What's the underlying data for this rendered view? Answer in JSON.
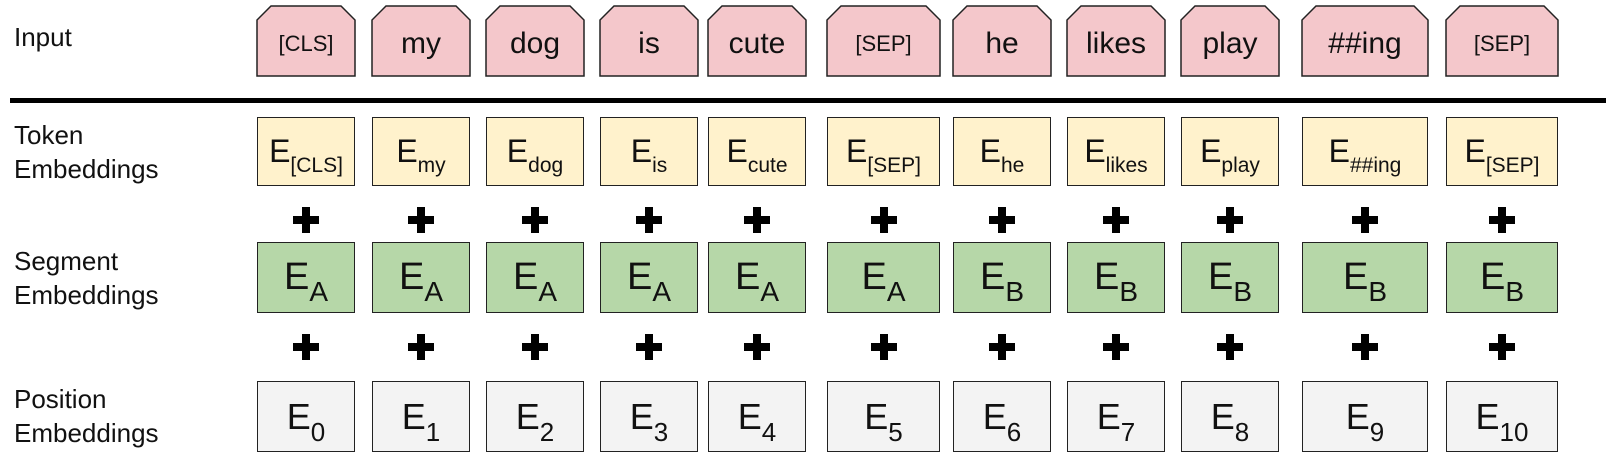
{
  "labels": {
    "input": [
      "Input"
    ],
    "token": [
      "Token",
      "Embeddings"
    ],
    "segment": [
      "Segment",
      "Embeddings"
    ],
    "position": [
      "Position",
      "Embeddings"
    ]
  },
  "columns": [
    {
      "input": "[CLS]",
      "token_sub": "[CLS]",
      "segment_sub": "A",
      "position_sub": "0"
    },
    {
      "input": "my",
      "token_sub": "my",
      "segment_sub": "A",
      "position_sub": "1"
    },
    {
      "input": "dog",
      "token_sub": "dog",
      "segment_sub": "A",
      "position_sub": "2"
    },
    {
      "input": "is",
      "token_sub": "is",
      "segment_sub": "A",
      "position_sub": "3"
    },
    {
      "input": "cute",
      "token_sub": "cute",
      "segment_sub": "A",
      "position_sub": "4"
    },
    {
      "input": "[SEP]",
      "token_sub": "[SEP]",
      "segment_sub": "A",
      "position_sub": "5"
    },
    {
      "input": "he",
      "token_sub": "he",
      "segment_sub": "B",
      "position_sub": "6"
    },
    {
      "input": "likes",
      "token_sub": "likes",
      "segment_sub": "B",
      "position_sub": "7"
    },
    {
      "input": "play",
      "token_sub": "play",
      "segment_sub": "B",
      "position_sub": "8"
    },
    {
      "input": "##ing",
      "token_sub": "##ing",
      "segment_sub": "B",
      "position_sub": "9"
    },
    {
      "input": "[SEP]",
      "token_sub": "[SEP]",
      "segment_sub": "B",
      "position_sub": "10"
    }
  ],
  "embedding_symbol": "E",
  "colors": {
    "input": "#f4c7cb",
    "token": "#fff2cc",
    "segment": "#b6d7a8",
    "position": "#f3f3f3"
  }
}
